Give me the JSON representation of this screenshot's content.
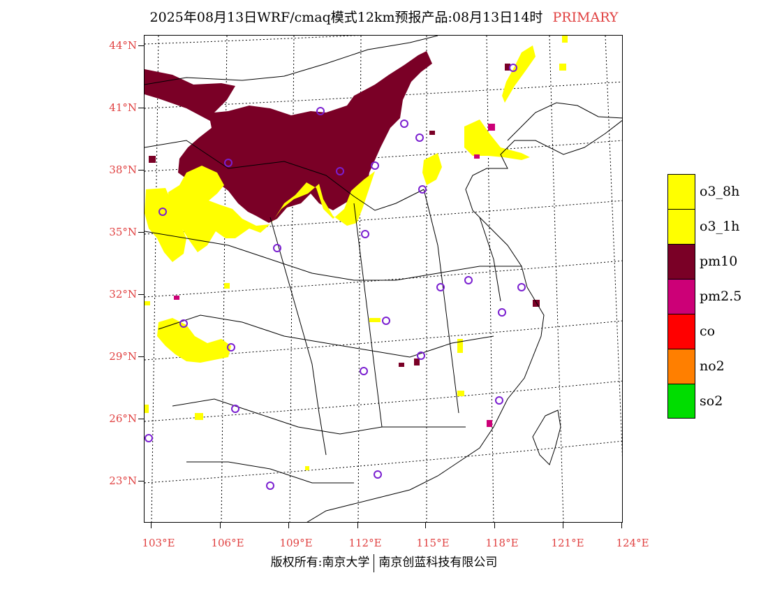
{
  "header": {
    "title": "2025年08月13日WRF/cmaq模式12km预报产品:08月13日14时",
    "tag": "PRIMARY",
    "tag_color": "#e04040"
  },
  "axes": {
    "lat_labels": [
      "44°N",
      "41°N",
      "38°N",
      "35°N",
      "32°N",
      "29°N",
      "26°N",
      "23°N"
    ],
    "lon_labels": [
      "103°E",
      "106°E",
      "109°E",
      "112°E",
      "115°E",
      "118°E",
      "121°E",
      "124°E"
    ]
  },
  "legend": {
    "items": [
      {
        "label": "o3_8h",
        "color": "#ffff00"
      },
      {
        "label": "o3_1h",
        "color": "#ffff00"
      },
      {
        "label": "pm10",
        "color": "#7a0026"
      },
      {
        "label": "pm2.5",
        "color": "#cc0077"
      },
      {
        "label": "co",
        "color": "#ff0000"
      },
      {
        "label": "no2",
        "color": "#ff7f00"
      },
      {
        "label": "so2",
        "color": "#00dd00"
      }
    ]
  },
  "footer": {
    "left": "版权所有:南京大学",
    "right": "南京创蓝科技有限公司"
  },
  "colors": {
    "ozone": "#ffff00",
    "pm10": "#7a0026",
    "pm25": "#cc0077",
    "station_ring": "#7a1fd0",
    "axis_label": "#e04040"
  }
}
